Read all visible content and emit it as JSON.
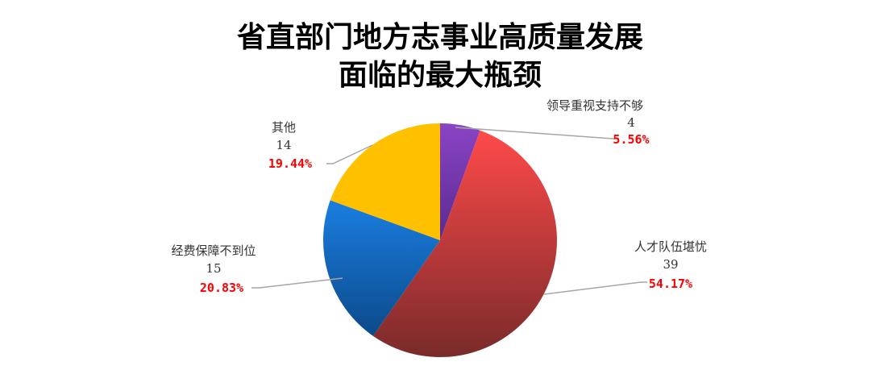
{
  "chart_data": {
    "type": "pie",
    "title": [
      "省直部门地方志事业高质量发展",
      "面临的最大瓶颈"
    ],
    "slices": [
      {
        "label": "领导重视支持不够",
        "value": 4,
        "percent": "5.56%",
        "color_top": "#8a44c4",
        "color_bottom": "#5a2a90"
      },
      {
        "label": "人才队伍堪忧",
        "value": 39,
        "percent": "54.17%",
        "color_top": "#ff4a4a",
        "color_bottom": "#7a2a2a"
      },
      {
        "label": "经费保障不到位",
        "value": 15,
        "percent": "20.83%",
        "color_top": "#1a7ee0",
        "color_bottom": "#0c4a8a"
      },
      {
        "label": "其他",
        "value": 14,
        "percent": "19.44%",
        "color_top": "#ffc000",
        "color_bottom": "#ffc000"
      }
    ],
    "start_angle": "12 o'clock",
    "direction": "clockwise",
    "legend": "none",
    "label_position": "outside with leader lines"
  }
}
